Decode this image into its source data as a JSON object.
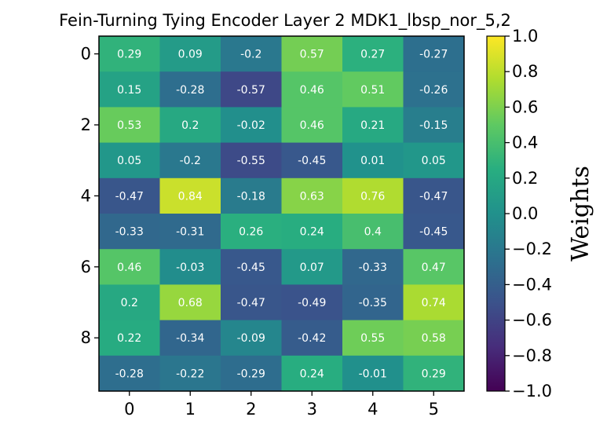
{
  "chart_data": {
    "type": "heatmap",
    "title": "Fein-Turning Tying Encoder Layer 2 MDK1_lbsp_nor_5,2",
    "xlabel": "",
    "ylabel": "",
    "colorbar_label": "Weights",
    "colormap": "viridis",
    "vmin": -1.0,
    "vmax": 1.0,
    "x_ticks": [
      "0",
      "1",
      "2",
      "3",
      "4",
      "5"
    ],
    "y_ticks": [
      "0",
      "2",
      "4",
      "6",
      "8"
    ],
    "y_tick_rows": [
      0,
      2,
      4,
      6,
      8
    ],
    "colorbar_ticks": [
      "1.0",
      "0.8",
      "0.6",
      "0.4",
      "0.2",
      "0.0",
      "−0.2",
      "−0.4",
      "−0.6",
      "−0.8",
      "−1.0"
    ],
    "colorbar_tick_values": [
      1.0,
      0.8,
      0.6,
      0.4,
      0.2,
      0.0,
      -0.2,
      -0.4,
      -0.6,
      -0.8,
      -1.0
    ],
    "values": [
      [
        0.29,
        0.09,
        -0.2,
        0.57,
        0.27,
        -0.27
      ],
      [
        0.15,
        -0.28,
        -0.57,
        0.46,
        0.51,
        -0.26
      ],
      [
        0.53,
        0.2,
        -0.02,
        0.46,
        0.21,
        -0.15
      ],
      [
        0.05,
        -0.2,
        -0.55,
        -0.45,
        0.01,
        0.05
      ],
      [
        -0.47,
        0.84,
        -0.18,
        0.63,
        0.76,
        -0.47
      ],
      [
        -0.33,
        -0.31,
        0.26,
        0.24,
        0.4,
        -0.45
      ],
      [
        0.46,
        -0.03,
        -0.45,
        0.07,
        -0.33,
        0.47
      ],
      [
        0.2,
        0.68,
        -0.47,
        -0.49,
        -0.35,
        0.74
      ],
      [
        0.22,
        -0.34,
        -0.09,
        -0.42,
        0.55,
        0.58
      ],
      [
        -0.28,
        -0.22,
        -0.29,
        0.24,
        -0.01,
        0.29
      ]
    ]
  }
}
